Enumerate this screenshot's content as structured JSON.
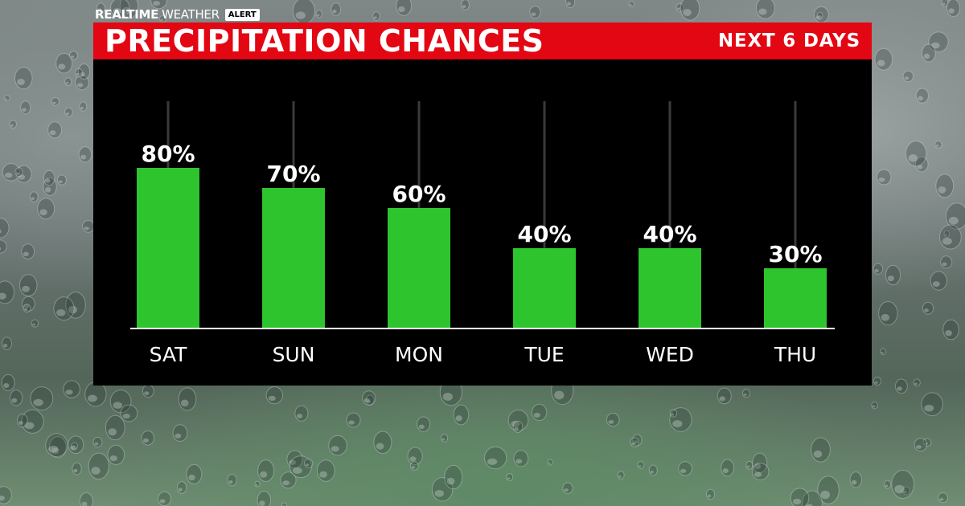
{
  "header": {
    "brand_bold": "REALTIME",
    "brand_light": "WEATHER",
    "brand_badge": "ALERT"
  },
  "title_bar": {
    "title": "PRECIPITATION CHANCES",
    "subtitle": "NEXT 6 DAYS"
  },
  "colors": {
    "title_bar": "#e30613",
    "bar": "#2ec42e",
    "panel": "#000000",
    "text": "#ffffff"
  },
  "chart_data": {
    "type": "bar",
    "title": "PRECIPITATION CHANCES",
    "subtitle": "NEXT 6 DAYS",
    "categories": [
      "SAT",
      "SUN",
      "MON",
      "TUE",
      "WED",
      "THU"
    ],
    "values": [
      80,
      70,
      60,
      40,
      40,
      30
    ],
    "value_labels": [
      "80%",
      "70%",
      "60%",
      "40%",
      "40%",
      "30%"
    ],
    "unit": "%",
    "ylim": [
      0,
      100
    ],
    "grid": false,
    "legend": "none"
  }
}
